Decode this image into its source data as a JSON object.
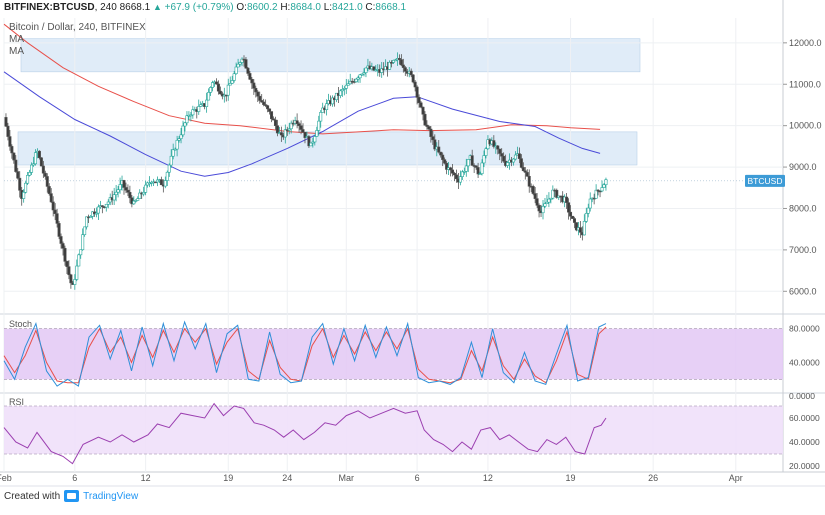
{
  "header": {
    "symbol": "BITFINEX:BTCUSD",
    "interval": "240",
    "last": "8668.1",
    "change": "+67.9 (+0.79%)",
    "open_label": "O:",
    "open": "8600.2",
    "high_label": "H:",
    "high": "8684.0",
    "low_label": "L:",
    "low": "8421.0",
    "close_label": "C:",
    "close": "8668.1",
    "caret": "▲"
  },
  "subtitle": {
    "line1": "Bitcoin / Dollar, 240, BITFINEX",
    "line2": "MA",
    "line3": "MA"
  },
  "footer": {
    "created_with": "Created with",
    "brand": "TradingView"
  },
  "colors": {
    "up": "#26a69a",
    "down": "#555555",
    "candle_up_fill": "#26a69a",
    "candle_down_fill": "#3c3c3c",
    "ma_fast": "#4a4ad8",
    "ma_slow": "#e8504a",
    "zone": "#d6e6f5",
    "stoch_k": "#2f8fd8",
    "stoch_d": "#e8504a",
    "stoch_band": "#e3c8f5",
    "rsi_line": "#9b3fb0",
    "rsi_band": "#f0e0fa",
    "label_bg": "#3d9bd6"
  },
  "chart_data": [
    {
      "type": "candlestick",
      "title": "Bitcoin / Dollar, 240, BITFINEX",
      "price_label": "BTCUSD",
      "current_price": 8668.1,
      "ylim": [
        5500,
        12600
      ],
      "y_ticks": [
        "12000.0",
        "11000.0",
        "10000.0",
        "9000.0",
        "8000.0",
        "7000.0",
        "6000.0"
      ],
      "y_tick_values": [
        12000,
        11000,
        10000,
        9000,
        8000,
        7000,
        6000
      ],
      "x_ticks": [
        "Feb",
        "6",
        "12",
        "19",
        "24",
        "Mar",
        "6",
        "12",
        "19",
        "26",
        "Apr"
      ],
      "x_tick_days": [
        0,
        6,
        12,
        19,
        24,
        29,
        35,
        41,
        48,
        55,
        62
      ],
      "x_range_days": [
        0,
        66
      ],
      "resistance_zones": [
        [
          11300,
          12100
        ],
        [
          9050,
          9850
        ]
      ],
      "anchors": [
        [
          0,
          10200
        ],
        [
          1.5,
          8300
        ],
        [
          2.8,
          9400
        ],
        [
          4,
          8200
        ],
        [
          5,
          7000
        ],
        [
          5.8,
          6050
        ],
        [
          7,
          7800
        ],
        [
          9,
          8200
        ],
        [
          10,
          8600
        ],
        [
          11,
          8100
        ],
        [
          12.5,
          8700
        ],
        [
          13.5,
          8600
        ],
        [
          14.5,
          9500
        ],
        [
          15.7,
          10300
        ],
        [
          17,
          10500
        ],
        [
          17.7,
          11100
        ],
        [
          18.7,
          10700
        ],
        [
          20.2,
          11700
        ],
        [
          21.3,
          10800
        ],
        [
          22.5,
          10300
        ],
        [
          23.5,
          9700
        ],
        [
          24.7,
          10200
        ],
        [
          26,
          9500
        ],
        [
          27,
          10400
        ],
        [
          28.5,
          10800
        ],
        [
          30.7,
          11400
        ],
        [
          31.8,
          11300
        ],
        [
          33.5,
          11600
        ],
        [
          34.7,
          11100
        ],
        [
          35.5,
          10200
        ],
        [
          36.5,
          9500
        ],
        [
          37.5,
          9000
        ],
        [
          38.5,
          8700
        ],
        [
          39.5,
          9200
        ],
        [
          40.3,
          8800
        ],
        [
          41,
          9700
        ],
        [
          42.5,
          9100
        ],
        [
          43.5,
          9300
        ],
        [
          44.5,
          8600
        ],
        [
          45.5,
          7900
        ],
        [
          46.5,
          8400
        ],
        [
          47.5,
          8200
        ],
        [
          48.3,
          7600
        ],
        [
          49,
          7400
        ],
        [
          49.6,
          8200
        ],
        [
          50.4,
          8450
        ],
        [
          51,
          8668
        ]
      ],
      "ma_fast": [
        [
          0,
          11300
        ],
        [
          3,
          10700
        ],
        [
          6,
          10150
        ],
        [
          9,
          9750
        ],
        [
          12,
          9300
        ],
        [
          15,
          8900
        ],
        [
          17,
          8780
        ],
        [
          19,
          8870
        ],
        [
          21,
          9080
        ],
        [
          24,
          9450
        ],
        [
          27,
          9860
        ],
        [
          30,
          10350
        ],
        [
          33,
          10660
        ],
        [
          35,
          10700
        ],
        [
          38,
          10400
        ],
        [
          42,
          10100
        ],
        [
          45,
          9980
        ],
        [
          47,
          9700
        ],
        [
          49,
          9450
        ],
        [
          50.5,
          9330
        ]
      ],
      "ma_slow": [
        [
          0,
          12450
        ],
        [
          2,
          12000
        ],
        [
          5,
          11400
        ],
        [
          8,
          10950
        ],
        [
          11,
          10580
        ],
        [
          14,
          10240
        ],
        [
          17,
          10060
        ],
        [
          20,
          10000
        ],
        [
          24,
          9860
        ],
        [
          27,
          9800
        ],
        [
          30,
          9850
        ],
        [
          33,
          9900
        ],
        [
          36,
          9880
        ],
        [
          40,
          9900
        ],
        [
          43,
          10020
        ],
        [
          46,
          10000
        ],
        [
          48,
          9950
        ],
        [
          50.5,
          9910
        ]
      ]
    },
    {
      "type": "line",
      "title": "Stoch",
      "ylim": [
        5,
        95
      ],
      "y_ticks": [
        "80.0000",
        "40.0000",
        "0.0000"
      ],
      "y_tick_values": [
        80,
        40,
        0
      ],
      "band": [
        20,
        80
      ],
      "k_line": [
        [
          0,
          42
        ],
        [
          0.9,
          20
        ],
        [
          1.8,
          58
        ],
        [
          2.7,
          86
        ],
        [
          3.6,
          30
        ],
        [
          4.5,
          12
        ],
        [
          5.4,
          20
        ],
        [
          6.3,
          12
        ],
        [
          7.2,
          70
        ],
        [
          8.1,
          84
        ],
        [
          9.0,
          44
        ],
        [
          9.9,
          78
        ],
        [
          10.8,
          30
        ],
        [
          11.7,
          82
        ],
        [
          12.6,
          36
        ],
        [
          13.5,
          86
        ],
        [
          14.4,
          42
        ],
        [
          15.3,
          88
        ],
        [
          16.2,
          56
        ],
        [
          17.1,
          86
        ],
        [
          18.0,
          28
        ],
        [
          18.9,
          74
        ],
        [
          19.8,
          84
        ],
        [
          20.7,
          20
        ],
        [
          21.6,
          18
        ],
        [
          22.5,
          76
        ],
        [
          23.4,
          26
        ],
        [
          24.3,
          16
        ],
        [
          25.2,
          18
        ],
        [
          26.1,
          70
        ],
        [
          27.0,
          86
        ],
        [
          27.9,
          38
        ],
        [
          28.8,
          80
        ],
        [
          29.7,
          42
        ],
        [
          30.6,
          84
        ],
        [
          31.5,
          46
        ],
        [
          32.4,
          82
        ],
        [
          33.3,
          48
        ],
        [
          34.2,
          86
        ],
        [
          35.1,
          22
        ],
        [
          36.0,
          16
        ],
        [
          36.9,
          18
        ],
        [
          37.8,
          14
        ],
        [
          38.7,
          22
        ],
        [
          39.6,
          64
        ],
        [
          40.5,
          22
        ],
        [
          41.4,
          80
        ],
        [
          42.3,
          28
        ],
        [
          43.2,
          16
        ],
        [
          44.1,
          52
        ],
        [
          45.0,
          18
        ],
        [
          45.9,
          14
        ],
        [
          46.8,
          50
        ],
        [
          47.7,
          84
        ],
        [
          48.6,
          18
        ],
        [
          49.5,
          22
        ],
        [
          50.4,
          82
        ],
        [
          51.0,
          86
        ]
      ],
      "d_line": [
        [
          0,
          48
        ],
        [
          0.9,
          28
        ],
        [
          1.8,
          48
        ],
        [
          2.7,
          78
        ],
        [
          3.6,
          40
        ],
        [
          4.5,
          18
        ],
        [
          5.4,
          16
        ],
        [
          6.3,
          16
        ],
        [
          7.2,
          58
        ],
        [
          8.1,
          80
        ],
        [
          9.0,
          52
        ],
        [
          9.9,
          70
        ],
        [
          10.8,
          40
        ],
        [
          11.7,
          72
        ],
        [
          12.6,
          46
        ],
        [
          13.5,
          78
        ],
        [
          14.4,
          52
        ],
        [
          15.3,
          80
        ],
        [
          16.2,
          64
        ],
        [
          17.1,
          80
        ],
        [
          18.0,
          38
        ],
        [
          18.9,
          64
        ],
        [
          19.8,
          80
        ],
        [
          20.7,
          30
        ],
        [
          21.6,
          20
        ],
        [
          22.5,
          66
        ],
        [
          23.4,
          34
        ],
        [
          24.3,
          20
        ],
        [
          25.2,
          18
        ],
        [
          26.1,
          60
        ],
        [
          27.0,
          80
        ],
        [
          27.9,
          46
        ],
        [
          28.8,
          72
        ],
        [
          29.7,
          50
        ],
        [
          30.6,
          76
        ],
        [
          31.5,
          54
        ],
        [
          32.4,
          76
        ],
        [
          33.3,
          56
        ],
        [
          34.2,
          80
        ],
        [
          35.1,
          32
        ],
        [
          36.0,
          20
        ],
        [
          36.9,
          18
        ],
        [
          37.8,
          16
        ],
        [
          38.7,
          20
        ],
        [
          39.6,
          54
        ],
        [
          40.5,
          30
        ],
        [
          41.4,
          70
        ],
        [
          42.3,
          36
        ],
        [
          43.2,
          20
        ],
        [
          44.1,
          44
        ],
        [
          45.0,
          24
        ],
        [
          45.9,
          16
        ],
        [
          46.8,
          42
        ],
        [
          47.7,
          76
        ],
        [
          48.6,
          26
        ],
        [
          49.5,
          20
        ],
        [
          50.4,
          74
        ],
        [
          51.0,
          82
        ]
      ]
    },
    {
      "type": "line",
      "title": "RSI",
      "ylim": [
        15,
        80
      ],
      "y_ticks": [
        "60.0000",
        "40.0000",
        "20.0000"
      ],
      "y_tick_values": [
        60,
        40,
        20
      ],
      "band": [
        30,
        70
      ],
      "rsi_line": [
        [
          0,
          52
        ],
        [
          1,
          40
        ],
        [
          2,
          35
        ],
        [
          2.8,
          48
        ],
        [
          4,
          32
        ],
        [
          5,
          28
        ],
        [
          5.8,
          22
        ],
        [
          6.7,
          38
        ],
        [
          8,
          44
        ],
        [
          9,
          40
        ],
        [
          10,
          46
        ],
        [
          11,
          40
        ],
        [
          12.2,
          46
        ],
        [
          13,
          55
        ],
        [
          14,
          52
        ],
        [
          15,
          64
        ],
        [
          16,
          62
        ],
        [
          17,
          60
        ],
        [
          17.8,
          72
        ],
        [
          18.6,
          62
        ],
        [
          19.5,
          70
        ],
        [
          20.3,
          68
        ],
        [
          21.2,
          56
        ],
        [
          22,
          54
        ],
        [
          22.9,
          50
        ],
        [
          23.7,
          44
        ],
        [
          24.5,
          50
        ],
        [
          25.4,
          42
        ],
        [
          26.3,
          48
        ],
        [
          27.2,
          56
        ],
        [
          28.1,
          54
        ],
        [
          29,
          62
        ],
        [
          30,
          66
        ],
        [
          31,
          60
        ],
        [
          32,
          64
        ],
        [
          33,
          68
        ],
        [
          34,
          64
        ],
        [
          35,
          66
        ],
        [
          35.6,
          50
        ],
        [
          36.4,
          42
        ],
        [
          37.2,
          38
        ],
        [
          38,
          32
        ],
        [
          38.8,
          40
        ],
        [
          39.6,
          34
        ],
        [
          40.4,
          50
        ],
        [
          41.2,
          52
        ],
        [
          42,
          42
        ],
        [
          42.8,
          46
        ],
        [
          43.6,
          40
        ],
        [
          44.4,
          34
        ],
        [
          45.2,
          32
        ],
        [
          46,
          42
        ],
        [
          46.8,
          38
        ],
        [
          47.6,
          44
        ],
        [
          48.4,
          32
        ],
        [
          49.2,
          30
        ],
        [
          50,
          52
        ],
        [
          50.6,
          54
        ],
        [
          51,
          60
        ]
      ]
    }
  ]
}
